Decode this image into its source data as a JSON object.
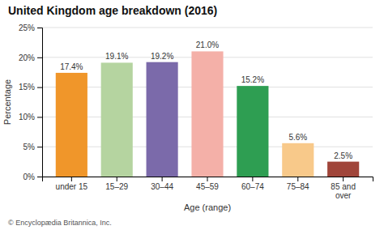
{
  "chart_data": {
    "type": "bar",
    "title": "United Kingdom age breakdown (2016)",
    "categories": [
      "under 15",
      "15–29",
      "30–44",
      "45–59",
      "60–74",
      "75–84",
      "85 and\nover"
    ],
    "values": [
      17.4,
      19.1,
      19.2,
      21.0,
      15.2,
      5.6,
      2.5
    ],
    "value_labels": [
      "17.4%",
      "19.1%",
      "19.2%",
      "21.0%",
      "15.2%",
      "5.6%",
      "2.5%"
    ],
    "data_labels": true,
    "colors": [
      "#f0962a",
      "#b5d4a0",
      "#7b6aaa",
      "#f4b0a8",
      "#2e9e52",
      "#f8c98a",
      "#a0453a"
    ],
    "xlabel": "Age (range)",
    "ylabel": "Percentage",
    "ylim": [
      0,
      25
    ],
    "yticks": [
      {
        "value": 0,
        "label": "0%"
      },
      {
        "value": 5,
        "label": "5%"
      },
      {
        "value": 10,
        "label": "10%"
      },
      {
        "value": 15,
        "label": "15%"
      },
      {
        "value": 20,
        "label": "20%"
      },
      {
        "value": 25,
        "label": "25%"
      }
    ],
    "grid": true,
    "annotations": [
      "© Encyclopædia Britannica, Inc."
    ]
  }
}
